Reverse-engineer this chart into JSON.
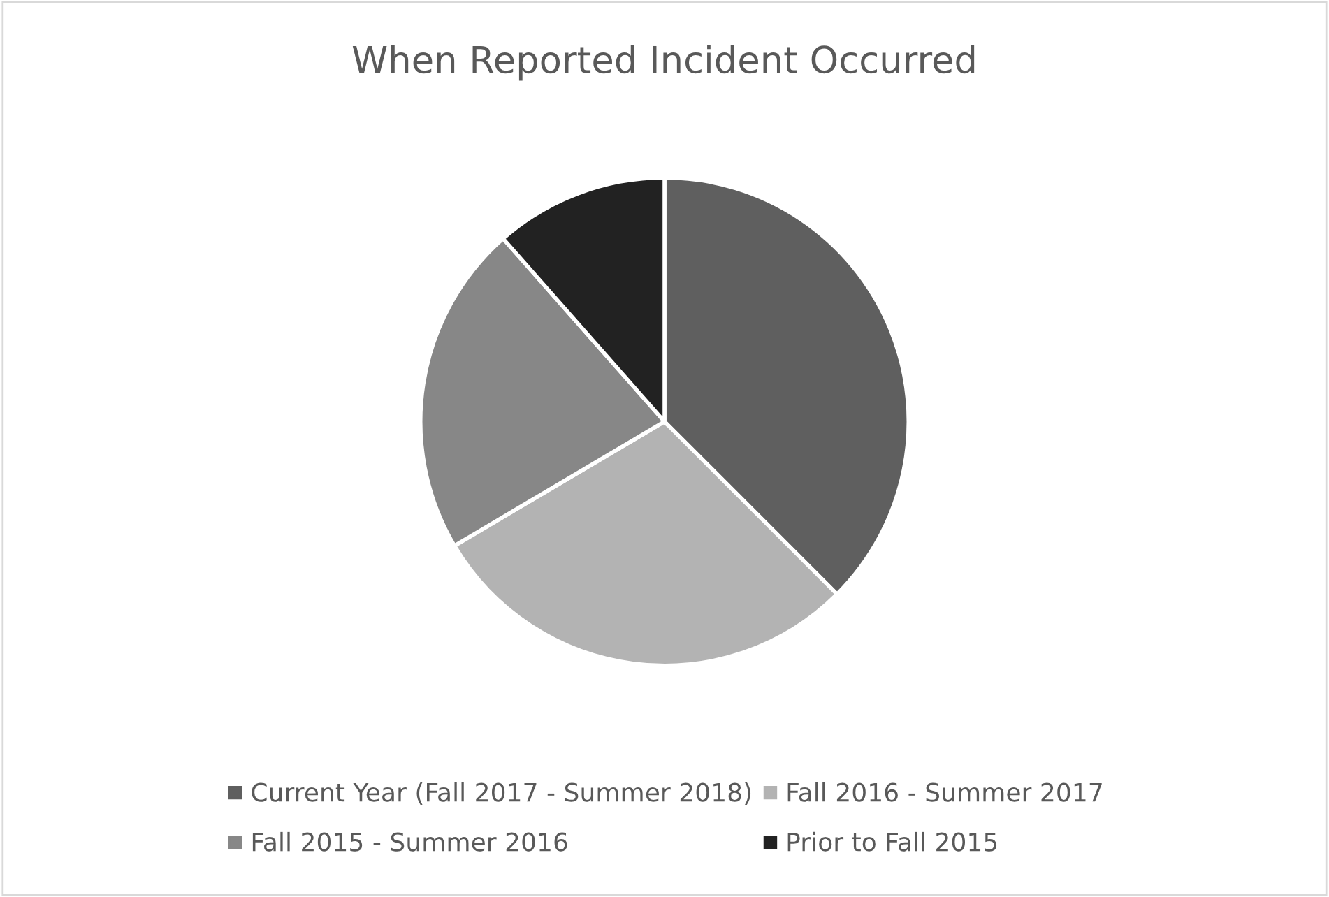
{
  "chart_data": {
    "type": "pie",
    "title": "When Reported Incident Occurred",
    "categories": [
      "Current Year (Fall 2017 - Summer 2018)",
      "Fall 2016 - Summer 2017",
      "Fall 2015 - Summer 2016",
      "Prior to Fall 2015"
    ],
    "values": [
      37.5,
      29,
      22,
      11.5
    ],
    "colors": [
      "#5f5f5f",
      "#b3b3b3",
      "#878787",
      "#222222"
    ],
    "legend": "bottom"
  }
}
